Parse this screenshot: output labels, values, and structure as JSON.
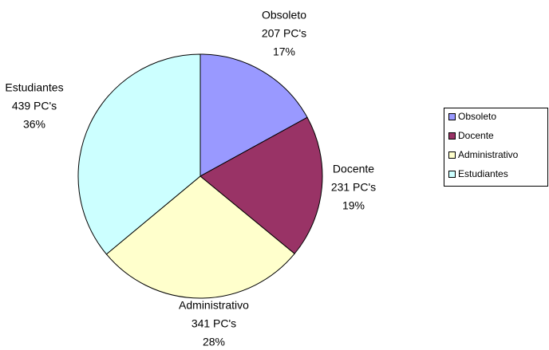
{
  "chart_data": {
    "type": "pie",
    "categories": [
      "Obsoleto",
      "Docente",
      "Administrativo",
      "Estudiantes"
    ],
    "values": [
      207,
      231,
      341,
      439
    ],
    "value_labels": [
      "207 PC's",
      "231 PC's",
      "341 PC's",
      "439 PC's"
    ],
    "percent_labels": [
      "17%",
      "19%",
      "28%",
      "36%"
    ],
    "colors": [
      "#9999ff",
      "#993366",
      "#ffffcc",
      "#ccffff"
    ],
    "legend": "right"
  }
}
